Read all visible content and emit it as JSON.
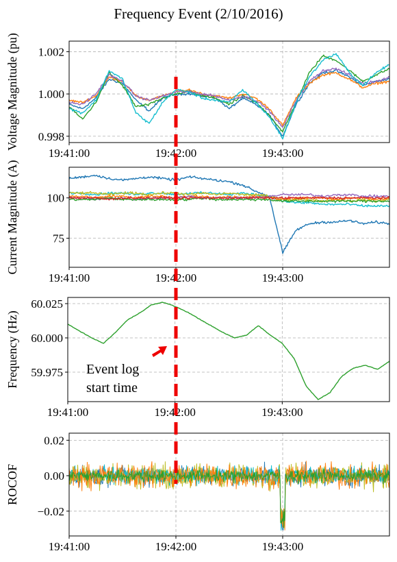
{
  "figure": {
    "title": "Frequency Event (2/10/2016)"
  },
  "annotation": {
    "text_line1": "Event log",
    "text_line2": "start time",
    "event_time": "19:42:00"
  },
  "chart_data": [
    {
      "type": "line",
      "ylabel": "Voltage Magnitude (pu)",
      "x_range": [
        "19:41:00",
        "19:44:00"
      ],
      "xticks": [
        "19:41:00",
        "19:42:00",
        "19:43:00"
      ],
      "ylim": [
        0.9977,
        1.0025
      ],
      "yticks": [
        0.998,
        1.0,
        1.002
      ],
      "ytick_labels": [
        "0.998",
        "1.000",
        "1.002"
      ],
      "grid": true,
      "legend": "none",
      "series": [
        {
          "color": "#1f77b4",
          "values": [
            0.9995,
            0.9993,
            0.9998,
            1.0007,
            1.0005,
            0.9997,
            0.9992,
            0.9998,
            1.0,
            1.0,
            0.9999,
            0.9998,
            0.9993,
            0.9998,
            0.9995,
            0.999,
            0.998,
            0.9995,
            1.0005,
            1.001,
            1.0011,
            1.0008,
            1.0004,
            1.0006,
            1.0007
          ]
        },
        {
          "color": "#ff7f0e",
          "values": [
            0.9997,
            0.9996,
            0.9999,
            1.0008,
            1.0006,
            0.9999,
            0.9997,
            0.9999,
            1.0001,
            1.0002,
            1.0,
            0.9999,
            0.9998,
            1.0,
            0.9998,
            0.9993,
            0.9985,
            0.9998,
            1.0005,
            1.0009,
            1.001,
            1.0007,
            1.0003,
            1.0005,
            1.0006
          ]
        },
        {
          "color": "#2ca02c",
          "values": [
            0.9994,
            0.9988,
            0.9996,
            1.001,
            1.0004,
            0.9994,
            0.9995,
            0.9998,
            1.0,
            1.0001,
            0.9999,
            0.9998,
            0.9995,
            0.9999,
            0.9996,
            0.999,
            0.9982,
            0.9996,
            1.001,
            1.0018,
            1.0016,
            1.0011,
            1.0006,
            1.0009,
            1.0012
          ]
        },
        {
          "color": "#9467bd",
          "values": [
            0.9996,
            0.9995,
            1.0,
            1.0009,
            1.0006,
            0.9999,
            0.9997,
            0.9999,
            1.0001,
            1.0001,
            1.0,
            0.9999,
            0.9997,
            0.9999,
            0.9997,
            0.9992,
            0.9984,
            0.9997,
            1.0006,
            1.0011,
            1.0012,
            1.0009,
            1.0005,
            1.0006,
            1.0008
          ]
        },
        {
          "color": "#17becf",
          "values": [
            0.9993,
            0.9991,
            0.9997,
            1.0011,
            1.0007,
            0.9991,
            0.9986,
            0.9996,
            1.0002,
            1.0001,
            0.9998,
            0.9997,
            0.9996,
            1.0002,
            0.9996,
            0.9989,
            0.9979,
            0.9996,
            1.0008,
            1.0016,
            1.0019,
            1.001,
            1.0004,
            1.001,
            1.0014
          ]
        }
      ]
    },
    {
      "type": "line",
      "ylabel": "Current Magnitude (A)",
      "x_range": [
        "19:41:00",
        "19:44:00"
      ],
      "xticks": [
        "19:41:00",
        "19:42:00",
        "19:43:00"
      ],
      "ylim": [
        57,
        119
      ],
      "yticks": [
        75,
        100
      ],
      "ytick_labels": [
        "75",
        "100"
      ],
      "grid": true,
      "legend": "none",
      "series": [
        {
          "color": "#1f77b4",
          "values": [
            112,
            113,
            114,
            112,
            111,
            112,
            113,
            112,
            111,
            113,
            112,
            111,
            110,
            108,
            104,
            101,
            66,
            80,
            84,
            85,
            85,
            86,
            84,
            85,
            84
          ]
        },
        {
          "color": "#17becf",
          "values": [
            103,
            103,
            102,
            103,
            103,
            102,
            103,
            103,
            102,
            103,
            103,
            103,
            102,
            103,
            102,
            101,
            98,
            97,
            97,
            96,
            96,
            96,
            95,
            95,
            95
          ]
        },
        {
          "color": "#bcbd22",
          "values": [
            103,
            103,
            103,
            102,
            103,
            103,
            102,
            103,
            103,
            102,
            103,
            102,
            103,
            102,
            102,
            101,
            99,
            99,
            99,
            98,
            99,
            98,
            99,
            98,
            99
          ]
        },
        {
          "color": "#ff7f0e",
          "values": [
            101,
            101,
            100,
            101,
            101,
            100,
            101,
            101,
            100,
            101,
            101,
            100,
            101,
            100,
            101,
            100,
            99,
            100,
            100,
            100,
            99,
            100,
            100,
            99,
            100
          ]
        },
        {
          "color": "#9467bd",
          "values": [
            100,
            100,
            99,
            100,
            100,
            99,
            100,
            100,
            100,
            101,
            100,
            100,
            100,
            100,
            100,
            101,
            102,
            102,
            102,
            101,
            102,
            102,
            101,
            101,
            101
          ]
        },
        {
          "color": "#2ca02c",
          "values": [
            99,
            99,
            99,
            100,
            99,
            99,
            99,
            99,
            99,
            99,
            100,
            99,
            99,
            99,
            99,
            99,
            98,
            98,
            98,
            98,
            98,
            98,
            98,
            98,
            98
          ]
        },
        {
          "color": "#d62728",
          "values": [
            100,
            100,
            100,
            99,
            100,
            100,
            100,
            100,
            100,
            100,
            100,
            100,
            100,
            100,
            100,
            100,
            100,
            100,
            100,
            100,
            100,
            100,
            100,
            100,
            100
          ]
        }
      ]
    },
    {
      "type": "line",
      "ylabel": "Frequency (Hz)",
      "x_range": [
        "19:41:00",
        "19:44:00"
      ],
      "xticks": [
        "19:41:00",
        "19:42:00",
        "19:43:00"
      ],
      "ylim": [
        59.9535,
        60.0295
      ],
      "yticks": [
        59.975,
        60.0,
        60.025
      ],
      "ytick_labels": [
        "59.975",
        "60.000",
        "60.025"
      ],
      "grid": true,
      "legend": "none",
      "series": [
        {
          "color": "#2ca02c",
          "values": [
            60.01,
            60.005,
            60.0,
            59.996,
            60.004,
            60.013,
            60.018,
            60.024,
            60.026,
            60.023,
            60.019,
            60.014,
            60.009,
            60.004,
            60.0,
            60.002,
            60.009,
            60.002,
            59.996,
            59.985,
            59.965,
            59.955,
            59.96,
            59.972,
            59.978,
            59.98,
            59.977,
            59.983
          ]
        }
      ]
    },
    {
      "type": "line",
      "ylabel": "ROCOF",
      "x_range": [
        "19:41:00",
        "19:44:00"
      ],
      "xticks": [
        "19:41:00",
        "19:42:00",
        "19:43:00"
      ],
      "ylim": [
        -0.034,
        0.024
      ],
      "yticks": [
        -0.02,
        0.0,
        0.02
      ],
      "ytick_labels": [
        "−0.02",
        "0.00",
        "0.02"
      ],
      "grid": true,
      "legend": "none",
      "series": [
        {
          "color": "#1f77b4",
          "amplitude": 0.008
        },
        {
          "color": "#bcbd22",
          "amplitude": 0.01
        },
        {
          "color": "#17becf",
          "amplitude": 0.007
        },
        {
          "color": "#ff7f0e",
          "amplitude": 0.01
        },
        {
          "color": "#2ca02c",
          "amplitude": 0.005
        }
      ],
      "event_spike_min": -0.031,
      "event_spike_time": "19:43:00"
    }
  ]
}
